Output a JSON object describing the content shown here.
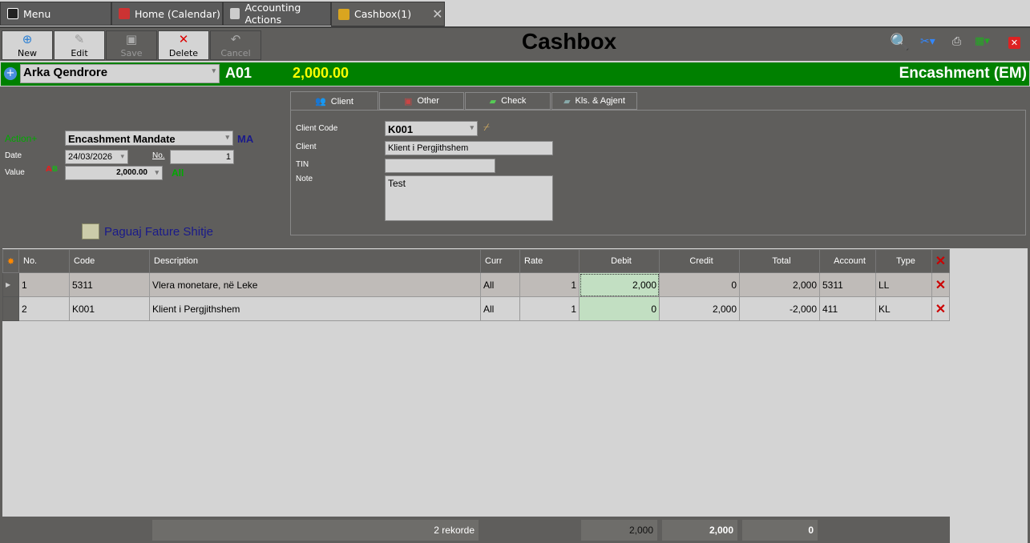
{
  "tabs": [
    {
      "label": "Menu",
      "icon": "menu-icon"
    },
    {
      "label": "Home (Calendar)",
      "icon": "home-icon"
    },
    {
      "label": "Accounting Actions",
      "icon": "accounting-icon"
    },
    {
      "label": "Cashbox(1)",
      "icon": "cashbox-icon",
      "active": true
    }
  ],
  "toolbar": {
    "new": "New",
    "edit": "Edit",
    "save": "Save",
    "delete": "Delete",
    "cancel": "Cancel",
    "title": "Cashbox"
  },
  "header": {
    "cashbox": "Arka Qendrore",
    "code": "A01",
    "balance": "2,000.00",
    "mode": "Encashment (EM)",
    "colors": {
      "bar": "#008000",
      "balance": "#ffff00"
    }
  },
  "form": {
    "action_label": "Action+",
    "action_value": "Encashment Mandate",
    "action_code": "MA",
    "date_label": "Date",
    "date_value": "24/03/2026",
    "no_label": "No.",
    "no_value": "1",
    "value_label": "Value",
    "value_value": "2,000.00",
    "currency": "All",
    "pay_link": "Paguaj Fature Shitje"
  },
  "panel": {
    "tabs": [
      "Client",
      "Other",
      "Check",
      "Kls. & Agjent"
    ],
    "client_code_label": "Client Code",
    "client_code": "K001",
    "client_label": "Client",
    "client": "Klient i Pergjithshem",
    "tin_label": "TIN",
    "tin": "",
    "note_label": "Note",
    "note": "Test"
  },
  "grid": {
    "columns": [
      "No.",
      "Code",
      "Description",
      "Curr",
      "Rate",
      "Debit",
      "Credit",
      "Total",
      "Account",
      "Type"
    ],
    "rows": [
      [
        "1",
        "5311",
        "Vlera monetare, në Leke",
        "All",
        "1",
        "2,000",
        "0",
        "2,000",
        "5311",
        "LL"
      ],
      [
        "2",
        "K001",
        "Klient i Pergjithshem",
        "All",
        "1",
        "0",
        "2,000",
        "-2,000",
        "411",
        "KL"
      ]
    ]
  },
  "footer": {
    "records": "2 rekorde",
    "debit": "2,000",
    "credit": "2,000",
    "total": "0"
  }
}
